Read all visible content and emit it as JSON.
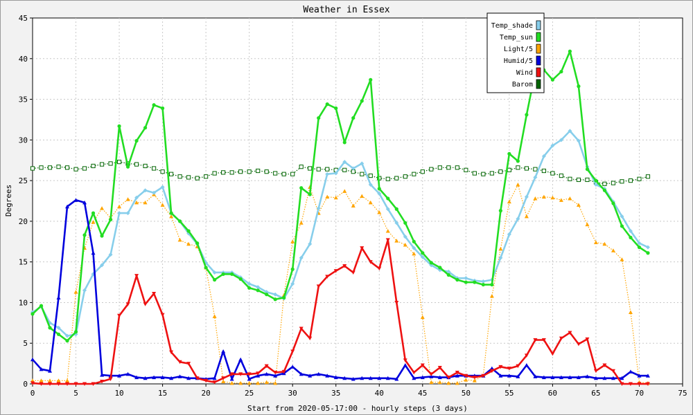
{
  "chart_data": {
    "type": "line",
    "title": "Weather in Essex",
    "xlabel": "Start from 2020-05-17:00 - hourly steps (3 days)",
    "ylabel": "Degrees",
    "xlim": [
      0,
      75
    ],
    "ylim": [
      0,
      45
    ],
    "x_ticks": [
      0,
      5,
      10,
      15,
      20,
      25,
      30,
      35,
      40,
      45,
      50,
      55,
      60,
      65,
      70,
      75
    ],
    "y_ticks": [
      0,
      5,
      10,
      15,
      20,
      25,
      30,
      35,
      40,
      45
    ],
    "grid": true,
    "legend_position": "top-right",
    "series": [
      {
        "name": "Temp_shade",
        "color": "#87ceeb",
        "marker": "diamond",
        "dotted": false,
        "values": [
          8.8,
          9.5,
          7.5,
          6.9,
          5.9,
          6.1,
          11.5,
          13.5,
          14.6,
          15.9,
          21.0,
          21.0,
          22.9,
          23.8,
          23.5,
          24.2,
          21.0,
          20.0,
          18.5,
          17.2,
          14.9,
          13.7,
          13.7,
          13.7,
          13.1,
          12.3,
          11.9,
          11.3,
          11.0,
          10.5,
          12.3,
          15.5,
          17.2,
          21.6,
          25.8,
          25.9,
          27.3,
          26.5,
          27.1,
          24.5,
          23.4,
          21.5,
          19.8,
          18.1,
          16.7,
          15.6,
          14.6,
          14.0,
          13.8,
          13.0,
          13.0,
          12.7,
          12.6,
          12.8,
          15.5,
          18.4,
          20.3,
          23.0,
          25.4,
          28.0,
          29.3,
          30.0,
          31.1,
          29.9,
          26.7,
          24.5,
          24.0,
          22.4,
          20.6,
          18.8,
          17.3,
          16.8
        ]
      },
      {
        "name": "Temp_sun",
        "color": "#22dd22",
        "marker": "circle",
        "dotted": false,
        "values": [
          8.6,
          9.6,
          6.9,
          6.1,
          5.3,
          6.4,
          18.3,
          21.0,
          18.2,
          20.2,
          31.7,
          26.7,
          29.9,
          31.5,
          34.3,
          33.9,
          21.0,
          20.0,
          18.8,
          17.3,
          14.3,
          12.8,
          13.5,
          13.5,
          12.9,
          11.8,
          11.5,
          11.0,
          10.4,
          10.6,
          14.1,
          24.1,
          23.3,
          32.7,
          34.4,
          33.9,
          29.7,
          32.7,
          34.8,
          37.4,
          24.0,
          22.8,
          21.5,
          19.8,
          17.5,
          16.1,
          14.9,
          14.3,
          13.4,
          12.8,
          12.5,
          12.5,
          12.2,
          12.2,
          21.3,
          28.3,
          27.4,
          33.1,
          38.4,
          38.6,
          37.4,
          38.4,
          40.9,
          36.6,
          26.4,
          25.0,
          23.8,
          22.2,
          19.4,
          18.0,
          16.8,
          16.1
        ]
      },
      {
        "name": "Light/5",
        "color": "#ffa500",
        "marker": "triangle",
        "dotted": true,
        "values": [
          0.4,
          0.4,
          0.4,
          0.4,
          0.4,
          11.3,
          16.7,
          19.9,
          21.6,
          20.4,
          21.8,
          22.7,
          22.3,
          22.3,
          23.3,
          22.0,
          20.6,
          17.7,
          17.2,
          16.9,
          14.3,
          8.3,
          0.3,
          0.1,
          0.1,
          0.1,
          0.1,
          0.2,
          0.1,
          10.9,
          17.5,
          19.8,
          24.2,
          21.0,
          23.0,
          22.9,
          23.7,
          21.9,
          23.1,
          22.3,
          21.1,
          18.8,
          17.6,
          17.1,
          16.0,
          8.2,
          0.2,
          0.2,
          0.1,
          0.1,
          0.5,
          0.4,
          1.0,
          10.8,
          16.6,
          22.4,
          24.5,
          20.6,
          22.8,
          23.0,
          22.9,
          22.6,
          22.8,
          22.0,
          19.6,
          17.4,
          17.2,
          16.4,
          15.3,
          8.8,
          0.2,
          0.1
        ]
      },
      {
        "name": "Humid/5",
        "color": "#0000dd",
        "marker": "triangle",
        "dotted": false,
        "values": [
          3.0,
          1.8,
          1.6,
          10.6,
          21.8,
          22.6,
          22.3,
          16.1,
          1.1,
          1.0,
          1.0,
          1.2,
          0.8,
          0.7,
          0.8,
          0.8,
          0.7,
          0.9,
          0.7,
          0.7,
          0.6,
          0.7,
          4.0,
          0.6,
          3.0,
          0.6,
          1.0,
          1.2,
          1.0,
          1.3,
          2.1,
          1.2,
          1.0,
          1.2,
          1.0,
          0.8,
          0.7,
          0.6,
          0.7,
          0.7,
          0.7,
          0.7,
          0.6,
          2.3,
          0.7,
          0.8,
          0.9,
          0.8,
          0.8,
          1.0,
          1.0,
          1.0,
          1.0,
          1.9,
          1.0,
          1.0,
          0.9,
          2.3,
          0.9,
          0.8,
          0.8,
          0.8,
          0.8,
          0.8,
          0.9,
          0.7,
          0.7,
          0.7,
          0.7,
          1.5,
          1.0,
          1.0
        ]
      },
      {
        "name": "Wind",
        "color": "#ee1111",
        "marker": "triangle-down",
        "dotted": false,
        "values": [
          0.1,
          0.0,
          0.0,
          0.0,
          0.0,
          0.0,
          0.0,
          0.0,
          0.3,
          0.6,
          8.4,
          9.8,
          13.3,
          9.8,
          11.1,
          8.5,
          3.9,
          2.7,
          2.5,
          0.7,
          0.4,
          0.2,
          0.7,
          1.2,
          1.2,
          1.2,
          1.3,
          2.2,
          1.4,
          1.5,
          4.0,
          6.8,
          5.6,
          12.0,
          13.2,
          13.9,
          14.5,
          13.7,
          16.7,
          15.0,
          14.2,
          17.7,
          10.0,
          2.9,
          1.4,
          2.3,
          1.2,
          2.0,
          0.8,
          1.4,
          1.0,
          0.8,
          1.0,
          1.6,
          2.1,
          1.9,
          2.2,
          3.5,
          5.4,
          5.4,
          3.7,
          5.6,
          6.3,
          4.9,
          5.5,
          1.6,
          2.3,
          1.6,
          0.0,
          0.0,
          0.0,
          0.0
        ]
      },
      {
        "name": "Barom",
        "color": "#006400",
        "marker": "square",
        "dotted": true,
        "values": [
          26.5,
          26.6,
          26.6,
          26.7,
          26.6,
          26.4,
          26.5,
          26.8,
          27.0,
          27.1,
          27.3,
          27.1,
          27.0,
          26.8,
          26.5,
          26.1,
          25.8,
          25.5,
          25.4,
          25.3,
          25.5,
          25.9,
          26.0,
          26.0,
          26.1,
          26.1,
          26.2,
          26.1,
          25.9,
          25.8,
          25.8,
          26.7,
          26.5,
          26.4,
          26.4,
          26.3,
          26.3,
          26.1,
          25.8,
          25.6,
          25.3,
          25.2,
          25.3,
          25.5,
          25.8,
          26.1,
          26.4,
          26.6,
          26.6,
          26.6,
          26.3,
          25.9,
          25.8,
          25.9,
          26.1,
          26.3,
          26.6,
          26.5,
          26.4,
          26.2,
          25.9,
          25.6,
          25.2,
          25.1,
          25.1,
          24.8,
          24.6,
          24.7,
          24.9,
          25.0,
          25.2,
          25.5
        ]
      }
    ]
  }
}
